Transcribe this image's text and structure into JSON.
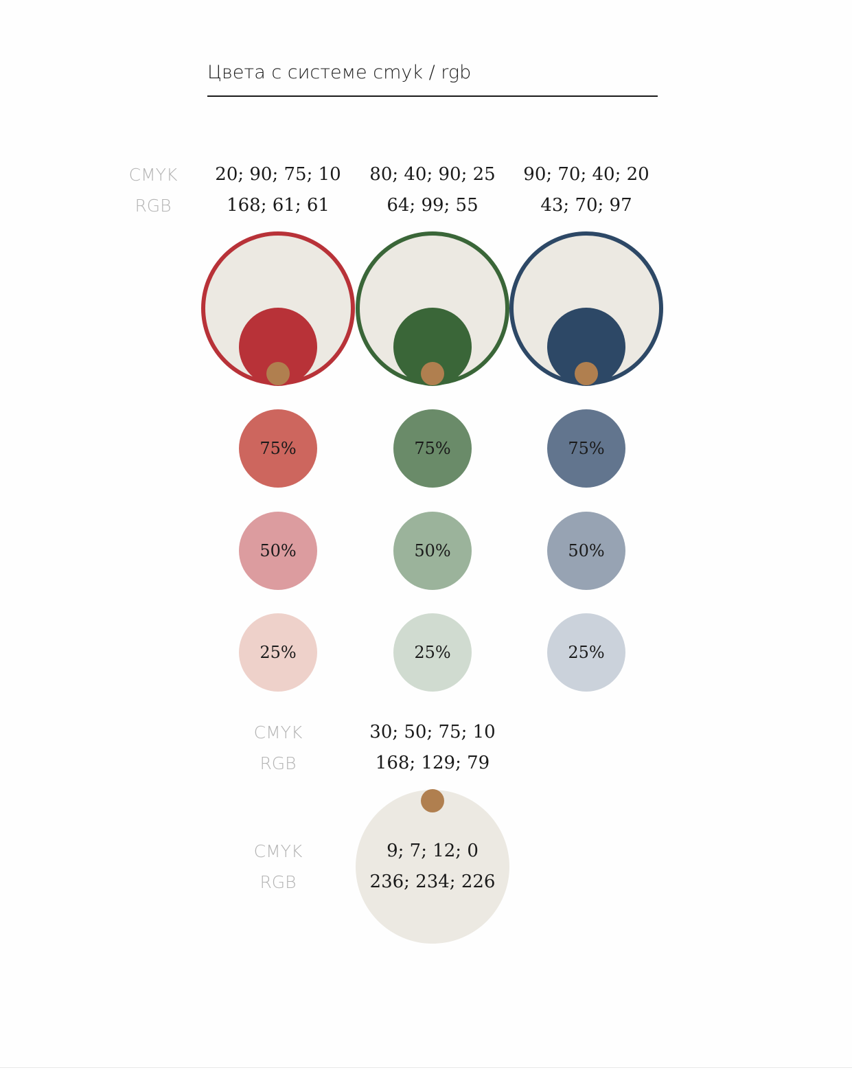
{
  "title": "Цвета с системе cmyk / rgb",
  "labels": {
    "cmyk": "CMYK",
    "rgb": "RGB"
  },
  "swatches": [
    {
      "name": "red",
      "cmyk": "20; 90; 75; 10",
      "rgb": "168; 61; 61",
      "color": "#B83238",
      "tints": [
        {
          "label": "75%",
          "color": "#CD665E"
        },
        {
          "label": "50%",
          "color": "#DC9C9F"
        },
        {
          "label": "25%",
          "color": "#EED1CA"
        }
      ]
    },
    {
      "name": "green",
      "cmyk": "80; 40; 90; 25",
      "rgb": "64; 99; 55",
      "color": "#3A6638",
      "tints": [
        {
          "label": "75%",
          "color": "#6A8B69"
        },
        {
          "label": "50%",
          "color": "#9BB39B"
        },
        {
          "label": "25%",
          "color": "#D0DBD0"
        }
      ]
    },
    {
      "name": "blue",
      "cmyk": "90; 70; 40; 20",
      "rgb": "43; 70; 97",
      "color": "#2D4866",
      "tints": [
        {
          "label": "75%",
          "color": "#62758E"
        },
        {
          "label": "50%",
          "color": "#97A3B3"
        },
        {
          "label": "25%",
          "color": "#CBD2DB"
        }
      ]
    }
  ],
  "accent": {
    "cmyk": "30; 50; 75; 10",
    "rgb": "168; 129; 79",
    "color": "#B07F4F"
  },
  "neutral": {
    "cmyk": "9; 7; 12; 0",
    "rgb": "236; 234; 226",
    "color": "#ECE9E2"
  }
}
